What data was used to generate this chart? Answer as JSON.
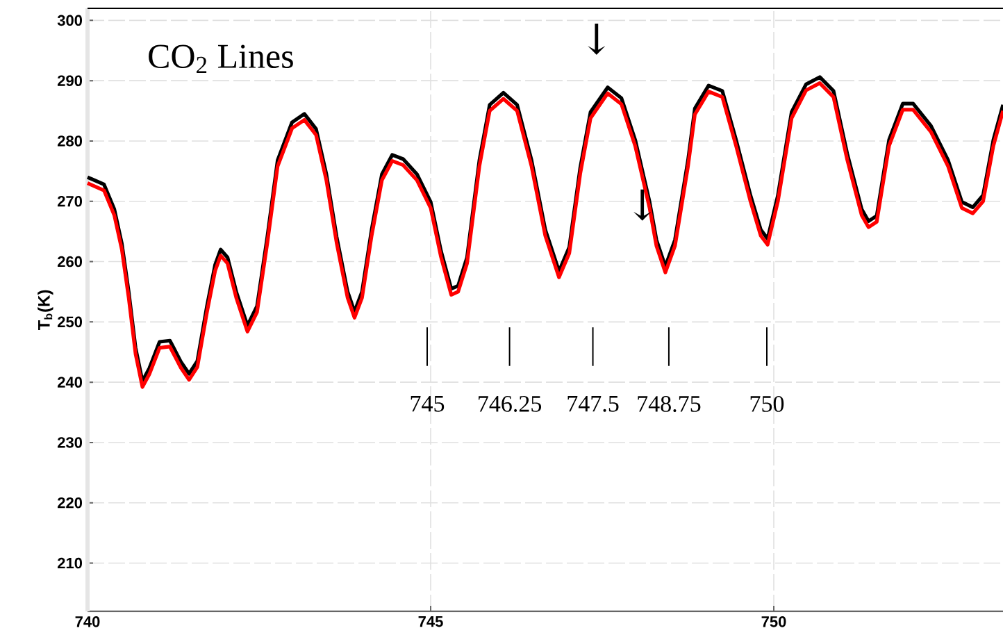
{
  "chart_data": {
    "type": "line",
    "ylabel": "T$_{b}$(K)",
    "x": [
      740.0,
      740.24,
      740.39,
      740.5,
      740.6,
      740.7,
      740.8,
      740.9,
      741.05,
      741.2,
      741.36,
      741.48,
      741.6,
      741.74,
      741.86,
      741.94,
      742.04,
      742.17,
      742.33,
      742.47,
      742.62,
      742.77,
      742.98,
      743.16,
      743.33,
      743.48,
      743.63,
      743.79,
      743.89,
      744.0,
      744.14,
      744.29,
      744.44,
      744.6,
      744.8,
      745.0,
      745.15,
      745.3,
      745.4,
      745.53,
      745.71,
      745.86,
      746.06,
      746.26,
      746.47,
      746.67,
      746.87,
      747.02,
      747.18,
      747.33,
      747.58,
      747.78,
      747.98,
      748.19,
      748.29,
      748.42,
      748.56,
      748.75,
      748.85,
      749.05,
      749.25,
      749.45,
      749.66,
      749.81,
      749.91,
      750.06,
      750.26,
      750.47,
      750.67,
      750.87,
      751.07,
      751.28,
      751.38,
      751.5,
      751.68,
      751.88,
      752.03,
      752.29,
      752.54,
      752.74,
      752.9,
      753.05,
      753.2,
      753.34
    ],
    "series": [
      {
        "color": "#000000",
        "values": [
          274,
          272.8,
          268.7,
          263,
          255,
          245.7,
          240.2,
          242.3,
          246.7,
          246.9,
          243.4,
          241.4,
          243.5,
          252.6,
          259.5,
          262,
          260.7,
          254.9,
          249.4,
          252.6,
          264.1,
          276.8,
          283.1,
          284.5,
          282,
          274.5,
          264.1,
          255,
          251.7,
          255,
          265.3,
          274.5,
          277.7,
          277,
          274.5,
          269.9,
          261.8,
          255.5,
          256,
          260.7,
          276.8,
          286,
          288,
          286,
          276.8,
          265.3,
          258.4,
          262.4,
          275.6,
          284.8,
          288.9,
          287.1,
          280.2,
          269.9,
          263.6,
          259.2,
          263.6,
          276.8,
          285.4,
          289.2,
          288.3,
          280.2,
          271,
          265.3,
          263.8,
          271,
          284.8,
          289.4,
          290.6,
          288.3,
          277.9,
          268.7,
          266.7,
          267.6,
          280.2,
          286.2,
          286.2,
          282.5,
          276.8,
          269.9,
          269,
          271,
          280.2,
          286
        ]
      },
      {
        "color": "#ff0000",
        "values": [
          273,
          271.8,
          267.7,
          262,
          254,
          244.7,
          239.2,
          241.3,
          245.7,
          245.9,
          242.4,
          240.4,
          242.5,
          251.6,
          258.5,
          261,
          259.7,
          253.9,
          248.4,
          251.6,
          263.1,
          275.8,
          282.1,
          283.5,
          281,
          273.5,
          263.1,
          254,
          250.7,
          254,
          264.3,
          273.5,
          276.7,
          276,
          273.5,
          268.9,
          260.8,
          254.5,
          255,
          259.7,
          275.8,
          285,
          287,
          285,
          275.8,
          264.3,
          257.4,
          261.4,
          274.6,
          283.8,
          287.9,
          286.1,
          279.2,
          268.9,
          262.6,
          258.2,
          262.6,
          275.8,
          284.4,
          288.2,
          287.3,
          279.2,
          270,
          264.3,
          262.8,
          270,
          283.8,
          288.4,
          289.6,
          287.3,
          276.9,
          267.7,
          265.7,
          266.6,
          279.2,
          285.2,
          285.2,
          281.5,
          275.8,
          268.9,
          268,
          270,
          279.2,
          285
        ]
      }
    ],
    "xlim": [
      740,
      753.34
    ],
    "ylim": [
      202,
      302
    ],
    "xticks": [
      740,
      745,
      750
    ],
    "yticks": [
      210,
      220,
      230,
      240,
      250,
      260,
      270,
      280,
      290,
      300
    ],
    "grid": true,
    "annotations": [
      "CO$_{2}$ Lines",
      "745",
      "746.25",
      "747.5",
      "748.75",
      "750",
      "↓",
      "↓"
    ]
  }
}
